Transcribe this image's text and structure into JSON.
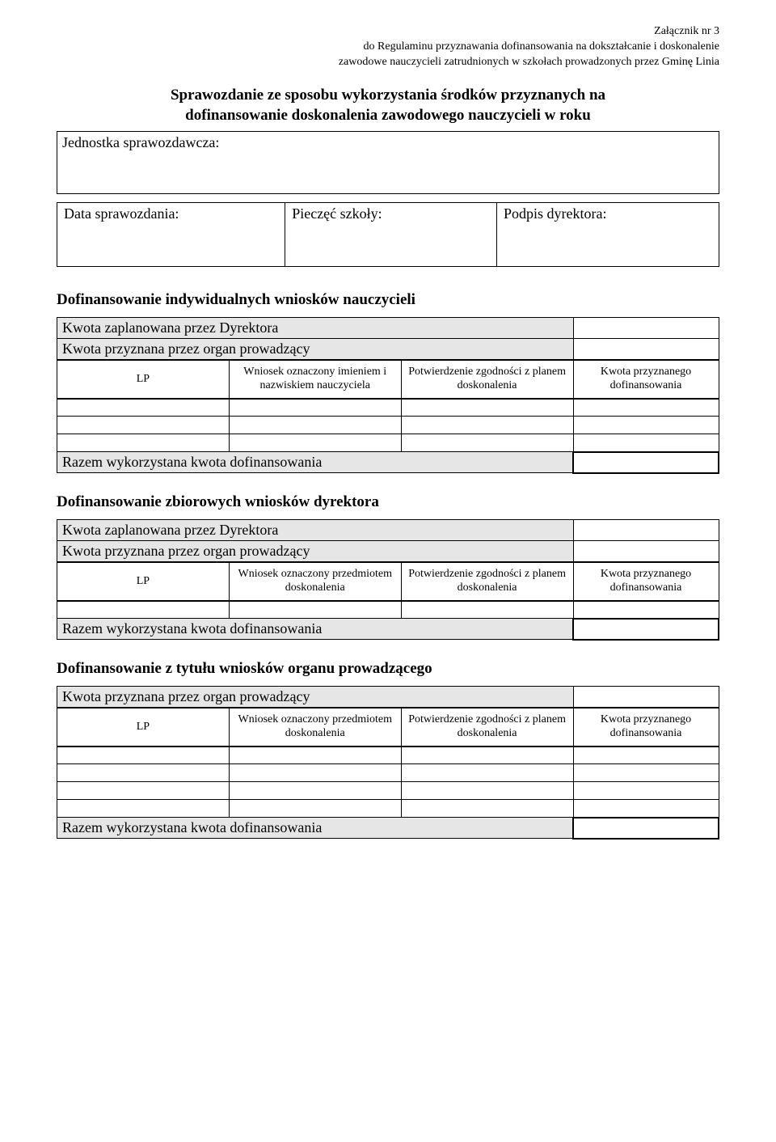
{
  "header": {
    "attachment": "Załącznik nr 3",
    "line1": "do Regulaminu przyznawania dofinansowania na dokształcanie i doskonalenie",
    "line2": "zawodowe nauczycieli zatrudnionych w szkołach prowadzonych przez Gminę Linia"
  },
  "title": {
    "line1": "Sprawozdanie ze sposobu wykorzystania środków przyznanych na",
    "line2": "dofinansowanie doskonalenia zawodowego nauczycieli w roku"
  },
  "jednostka_label": "Jednostka sprawozdawcza:",
  "meta": {
    "data_label": "Data sprawozdania:",
    "pieczec_label": "Pieczęć szkoły:",
    "podpis_label": "Podpis dyrektora:"
  },
  "section1": {
    "heading": "Dofinansowanie indywidualnych wniosków nauczycieli",
    "kwota_zaplanowana": "Kwota zaplanowana przez Dyrektora",
    "kwota_przyznana": "Kwota przyznana przez organ prowadzący",
    "cols": {
      "lp": "LP",
      "desc": "Wniosek oznaczony imieniem i nazwiskiem nauczyciela",
      "confirm": "Potwierdzenie zgodności z planem doskonalenia",
      "amount": "Kwota przyznanego dofinansowania"
    },
    "razem": "Razem wykorzystana kwota dofinansowania"
  },
  "section2": {
    "heading": "Dofinansowanie zbiorowych wniosków dyrektora",
    "kwota_zaplanowana": "Kwota zaplanowana przez Dyrektora",
    "kwota_przyznana": "Kwota przyznana przez organ prowadzący",
    "cols": {
      "lp": "LP",
      "desc": "Wniosek oznaczony przedmiotem doskonalenia",
      "confirm": "Potwierdzenie zgodności z planem doskonalenia",
      "amount": "Kwota przyznanego dofinansowania"
    },
    "razem": "Razem wykorzystana kwota dofinansowania"
  },
  "section3": {
    "heading": "Dofinansowanie z tytułu wniosków organu prowadzącego",
    "kwota_przyznana": "Kwota przyznana przez organ prowadzący",
    "cols": {
      "lp": "LP",
      "desc": "Wniosek oznaczony przedmiotem doskonalenia",
      "confirm": "Potwierdzenie zgodności z planem doskonalenia",
      "amount": "Kwota przyznanego dofinansowania"
    },
    "razem": "Razem wykorzystana kwota dofinansowania"
  },
  "colors": {
    "shaded_bg": "#e6e6e6",
    "border": "#000000",
    "text": "#000000",
    "page_bg": "#ffffff"
  }
}
